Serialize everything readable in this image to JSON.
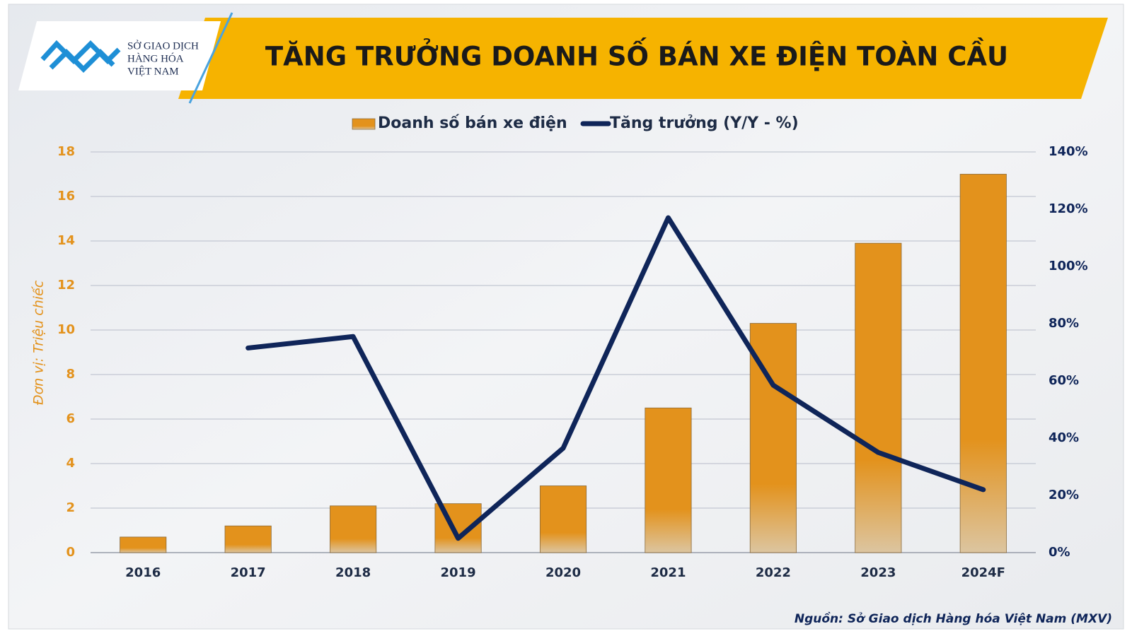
{
  "logo_text": [
    "SỞ GIAO DỊCH",
    "HÀNG HÓA",
    "VIỆT NAM"
  ],
  "chart_data": {
    "type": "bar-line",
    "title": "TĂNG TRƯỞNG DOANH SỐ BÁN XE ĐIỆN TOÀN CẦU",
    "y_label": "Đơn vị: Triệu chiếc",
    "source": "Nguồn: Sở Giao dịch Hàng hóa Việt Nam (MXV)",
    "categories": [
      "2016",
      "2017",
      "2018",
      "2019",
      "2020",
      "2021",
      "2022",
      "2023",
      "2024F"
    ],
    "series": [
      {
        "name": "Doanh số bán xe điện",
        "type": "bar",
        "color": "#e3921c",
        "values": [
          0.7,
          1.2,
          2.1,
          2.2,
          3.0,
          6.5,
          10.3,
          13.9,
          17.0
        ]
      },
      {
        "name": "Tăng trưởng (Y/Y - %)",
        "type": "line",
        "axis": "y2",
        "color": "#0f2559",
        "values": [
          null,
          71.5,
          75.5,
          5,
          36.5,
          117,
          58.5,
          35,
          22
        ]
      }
    ],
    "ylim": [
      0,
      18
    ],
    "yticks": [
      0,
      2,
      4,
      6,
      8,
      10,
      12,
      14,
      16,
      18
    ],
    "y2lim": [
      0,
      140
    ],
    "y2ticks": [
      {
        "value": 0,
        "label": "0%"
      },
      {
        "value": 20,
        "label": "20%"
      },
      {
        "value": 40,
        "label": "40%"
      },
      {
        "value": 60,
        "label": "60%"
      },
      {
        "value": 80,
        "label": "80%"
      },
      {
        "value": 100,
        "label": "100%"
      },
      {
        "value": 120,
        "label": "120%"
      },
      {
        "value": 140,
        "label": "140%"
      }
    ],
    "grid": true,
    "legend": "top"
  }
}
